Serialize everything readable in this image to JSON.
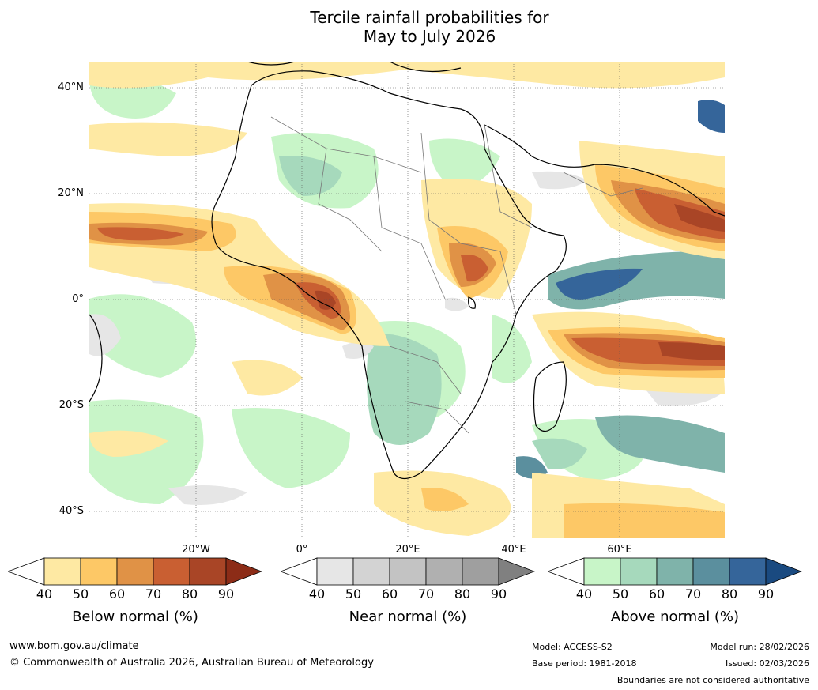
{
  "title": {
    "line1": "Tercile rainfall probabilities for",
    "line2": "May to July 2026"
  },
  "map": {
    "lat_labels": [
      "40°N",
      "20°N",
      "0°",
      "20°S",
      "40°S"
    ],
    "lon_labels": [
      "20°W",
      "0°",
      "20°E",
      "40°E",
      "60°E"
    ],
    "background": "#ffffff",
    "gridlines": "dotted"
  },
  "colorbars": [
    {
      "caption": "Below normal (%)",
      "ticks": [
        "40",
        "50",
        "60",
        "70",
        "80",
        "90"
      ],
      "colors": [
        "#ffffff",
        "#fee9a3",
        "#fdc866",
        "#e09246",
        "#c95f32",
        "#a94526",
        "#8c2c17"
      ]
    },
    {
      "caption": "Near normal (%)",
      "ticks": [
        "40",
        "50",
        "60",
        "70",
        "80",
        "90"
      ],
      "colors": [
        "#ffffff",
        "#e6e6e6",
        "#d3d3d3",
        "#c3c3c3",
        "#b0b0b0",
        "#9f9f9f",
        "#808080"
      ]
    },
    {
      "caption": "Above normal (%)",
      "ticks": [
        "40",
        "50",
        "60",
        "70",
        "80",
        "90"
      ],
      "colors": [
        "#ffffff",
        "#c8f5c8",
        "#a6d9bc",
        "#7fb3aa",
        "#5b8f9e",
        "#35659a",
        "#1a4a80"
      ]
    }
  ],
  "footer": {
    "website": "www.bom.gov.au/climate",
    "copyright": "© Commonwealth of Australia 2026, Australian Bureau of Meteorology",
    "model": "Model: ACCESS-S2",
    "base_period": "Base period: 1981-2018",
    "model_run": "Model run: 28/02/2026",
    "issued": "Issued: 02/03/2026",
    "disclaimer": "Boundaries are not considered authoritative"
  }
}
